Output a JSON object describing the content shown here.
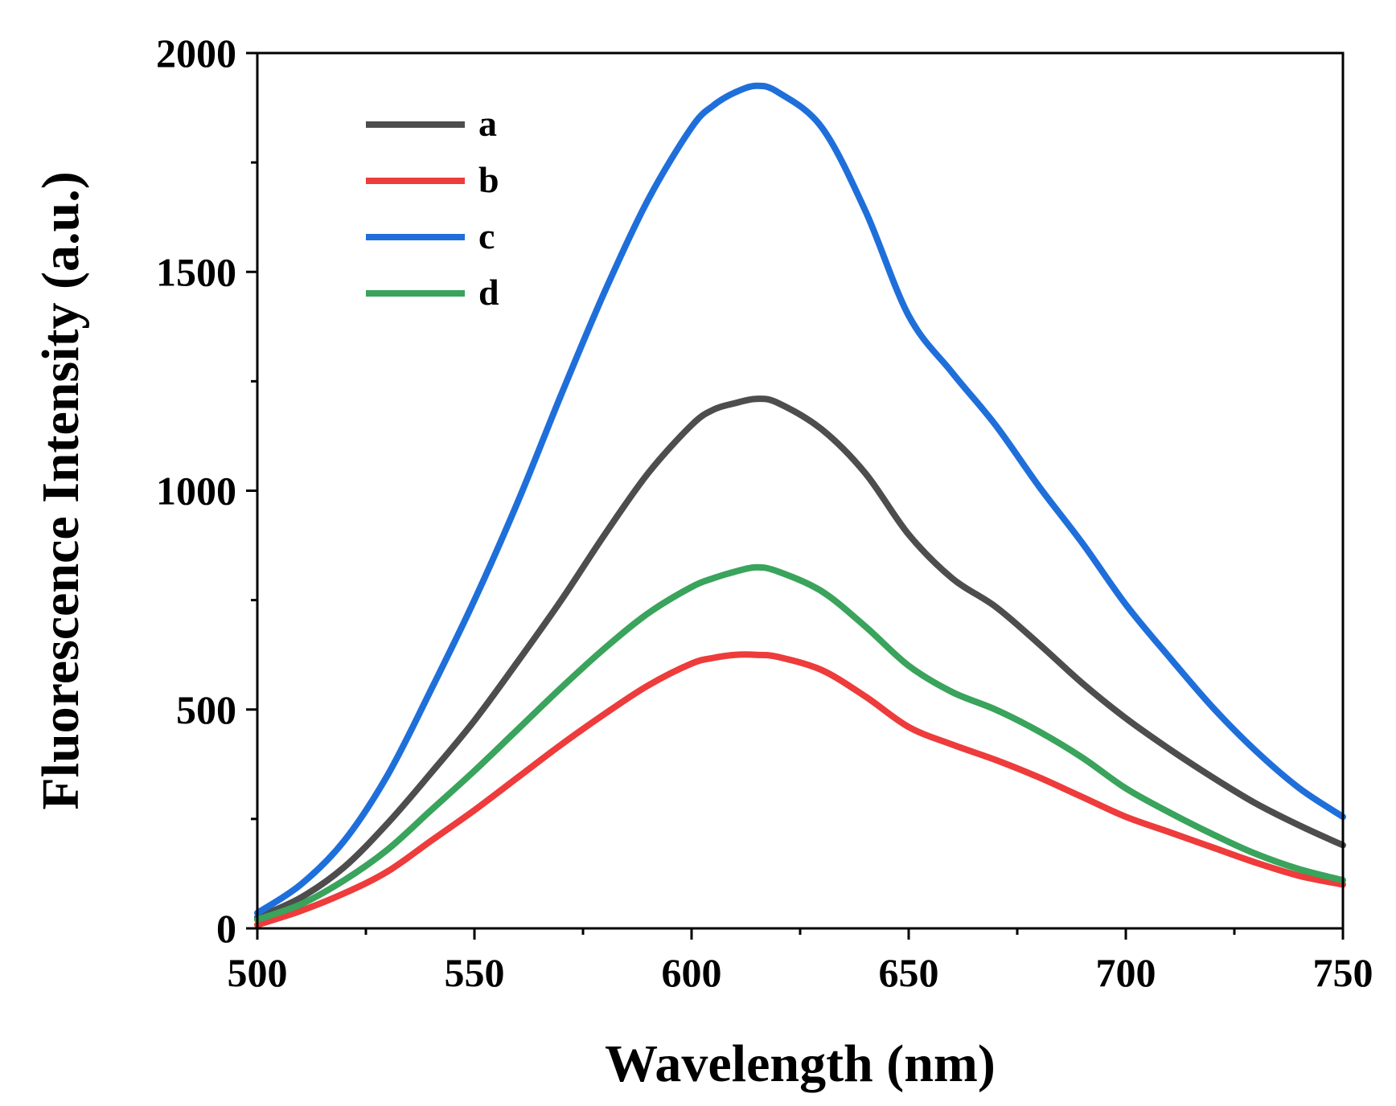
{
  "chart_data": {
    "type": "line",
    "title": "",
    "xlabel": "Wavelength (nm)",
    "ylabel": "Fluorescence Intensity (a.u.)",
    "xlim": [
      500,
      750
    ],
    "ylim": [
      0,
      2000
    ],
    "xticks": [
      500,
      550,
      600,
      650,
      700,
      750
    ],
    "xtick_labels": [
      "500",
      "550",
      "600",
      "650",
      "700",
      "750"
    ],
    "yticks": [
      0,
      500,
      1000,
      1500,
      2000
    ],
    "ytick_labels": [
      "0",
      "500",
      "1000",
      "1500",
      "2000"
    ],
    "grid": false,
    "legend_position": "top-left",
    "x": [
      500,
      510,
      520,
      530,
      540,
      550,
      560,
      570,
      580,
      590,
      600,
      605,
      610,
      615,
      620,
      630,
      640,
      650,
      660,
      670,
      680,
      690,
      700,
      710,
      720,
      730,
      740,
      750
    ],
    "series": [
      {
        "name": "a",
        "color": "#4d4d4d",
        "values": [
          25,
          70,
          140,
          240,
          355,
          475,
          610,
          750,
          900,
          1040,
          1150,
          1185,
          1200,
          1210,
          1200,
          1140,
          1040,
          900,
          800,
          735,
          650,
          560,
          480,
          410,
          345,
          285,
          235,
          190
        ]
      },
      {
        "name": "b",
        "color": "#ee3b3b",
        "values": [
          8,
          40,
          80,
          130,
          200,
          270,
          345,
          420,
          490,
          555,
          605,
          618,
          625,
          625,
          620,
          590,
          530,
          460,
          420,
          385,
          345,
          300,
          255,
          220,
          185,
          150,
          120,
          100
        ]
      },
      {
        "name": "c",
        "color": "#1f6fdb",
        "values": [
          35,
          100,
          200,
          350,
          545,
          750,
          975,
          1220,
          1455,
          1665,
          1830,
          1880,
          1910,
          1925,
          1910,
          1830,
          1640,
          1400,
          1270,
          1150,
          1010,
          880,
          740,
          620,
          505,
          405,
          320,
          255
        ]
      },
      {
        "name": "d",
        "color": "#3aa35c",
        "values": [
          20,
          55,
          110,
          180,
          270,
          360,
          455,
          550,
          640,
          720,
          780,
          800,
          815,
          825,
          815,
          770,
          690,
          600,
          540,
          500,
          450,
          390,
          320,
          265,
          215,
          170,
          135,
          110
        ]
      }
    ]
  }
}
